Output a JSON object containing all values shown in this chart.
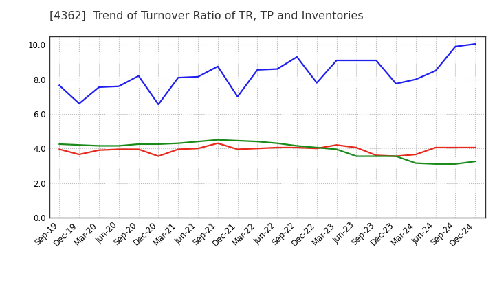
{
  "title": "[4362]  Trend of Turnover Ratio of TR, TP and Inventories",
  "xlabels": [
    "Sep-19",
    "Dec-19",
    "Mar-20",
    "Jun-20",
    "Sep-20",
    "Dec-20",
    "Mar-21",
    "Jun-21",
    "Sep-21",
    "Dec-21",
    "Mar-22",
    "Jun-22",
    "Sep-22",
    "Dec-22",
    "Mar-23",
    "Jun-23",
    "Sep-23",
    "Dec-23",
    "Mar-24",
    "Jun-24",
    "Sep-24",
    "Dec-24"
  ],
  "trade_receivables": [
    3.95,
    3.65,
    3.9,
    3.95,
    3.95,
    3.55,
    3.95,
    4.0,
    4.3,
    3.95,
    4.0,
    4.05,
    4.05,
    4.0,
    4.2,
    4.05,
    3.6,
    3.55,
    3.65,
    4.05,
    4.05,
    4.05
  ],
  "trade_payables": [
    7.65,
    6.6,
    7.55,
    7.6,
    8.2,
    6.55,
    8.1,
    8.15,
    8.75,
    7.0,
    8.55,
    8.6,
    9.3,
    7.8,
    9.1,
    9.1,
    9.1,
    7.75,
    8.0,
    8.5,
    9.9,
    10.05
  ],
  "inventories": [
    4.25,
    4.2,
    4.15,
    4.15,
    4.25,
    4.25,
    4.3,
    4.4,
    4.5,
    4.45,
    4.4,
    4.3,
    4.15,
    4.05,
    3.95,
    3.55,
    3.55,
    3.55,
    3.15,
    3.1,
    3.1,
    3.25
  ],
  "ylim": [
    0.0,
    10.5
  ],
  "yticks": [
    0.0,
    2.0,
    4.0,
    6.0,
    8.0,
    10.0
  ],
  "color_tr": "#e8291c",
  "color_tp": "#2020ee",
  "color_inv": "#1a8a1a",
  "bg_color": "#ffffff",
  "grid_color": "#bbbbbb",
  "title_fontsize": 11.5,
  "title_color": "#333333",
  "legend_fontsize": 9.5,
  "axis_fontsize": 8.5
}
